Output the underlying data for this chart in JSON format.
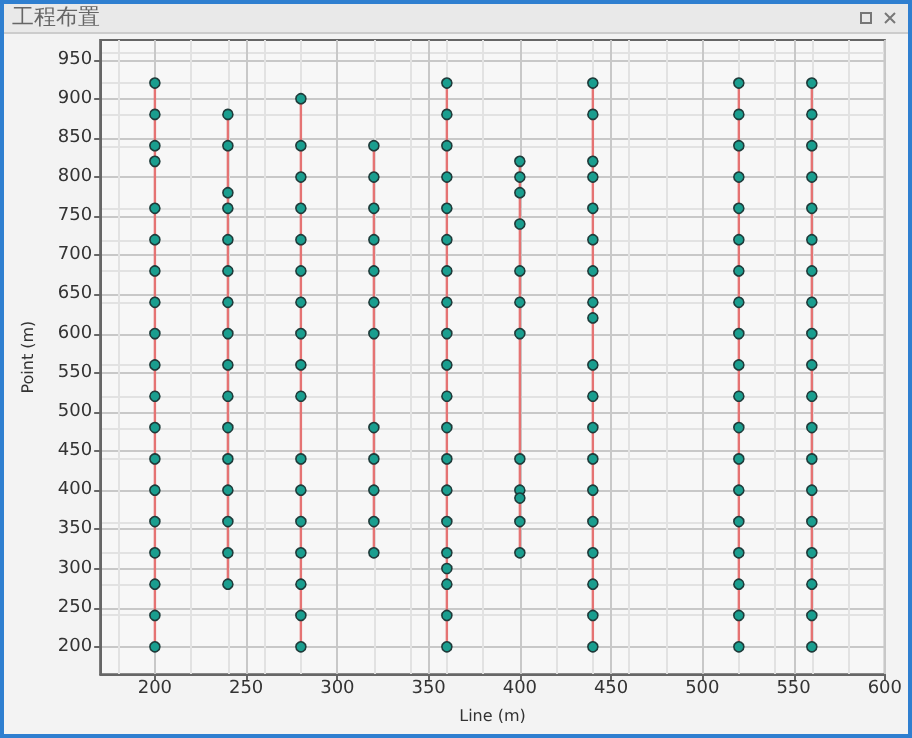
{
  "chart_data": {
    "type": "line",
    "title": "工程布置",
    "xlabel": "Line (m)",
    "ylabel": "Point (m)",
    "xlim": [
      170,
      600
    ],
    "xticks": [
      200,
      250,
      300,
      350,
      400,
      450,
      500,
      550,
      600
    ],
    "ylim": [
      165,
      975
    ],
    "yticks": [
      200,
      250,
      300,
      350,
      400,
      450,
      500,
      550,
      600,
      650,
      700,
      750,
      800,
      850,
      900,
      950
    ],
    "grid": true,
    "marker": "circle",
    "line_style": "solid",
    "series": [
      {
        "color": "#e57373",
        "x": [
          200,
          200,
          200,
          200,
          200,
          200,
          200,
          200,
          200,
          200,
          200,
          200,
          200,
          200,
          200,
          200,
          200,
          200,
          200
        ],
        "values": [
          920,
          880,
          840,
          820,
          760,
          720,
          680,
          640,
          600,
          560,
          520,
          480,
          440,
          400,
          360,
          320,
          280,
          240,
          200
        ],
        "colors": [
          "#1a9e8f",
          "#1a9e8f",
          "#1a9e8f",
          "#1a9e8f",
          "#1a9e8f",
          "#1a9e8f",
          "#1a9e8f",
          "#1a9e8f",
          "#1a9e8f",
          "#1a9e8f",
          "#1a9e8f",
          "#1a9e8f",
          "#1a9e8f",
          "#1a9e8f",
          "#1a9e8f",
          "#1a9e8f",
          "#1a9e8f",
          "#1a9e8f",
          "#1a9e8f"
        ]
      },
      {
        "color": "#e57373",
        "x": [
          240,
          240,
          240,
          240,
          240,
          240,
          240,
          240,
          240,
          240,
          240,
          240,
          240,
          240,
          240,
          240
        ],
        "values": [
          880,
          840,
          780,
          760,
          720,
          680,
          640,
          600,
          560,
          520,
          480,
          440,
          400,
          360,
          320,
          280
        ],
        "colors": [
          "#1a9e8f",
          "#1a9e8f",
          "#1a9e8f",
          "#1a9e8f",
          "#1a9e8f",
          "#1a9e8f",
          "#1a9e8f",
          "#1a9e8f",
          "#1a9e8f",
          "#1a9e8f",
          "#1a9e8f",
          "#1a9e8f",
          "#1a9e8f",
          "#1a9e8f",
          "#1a9e8f",
          "#1a9e8f"
        ]
      },
      {
        "color": "#e57373",
        "x": [
          280,
          280,
          280,
          280,
          280,
          280,
          280,
          280,
          280,
          280,
          280,
          280,
          280,
          280,
          280,
          280,
          280
        ],
        "values": [
          900,
          840,
          800,
          760,
          720,
          680,
          640,
          600,
          560,
          520,
          440,
          400,
          360,
          320,
          280,
          240,
          200
        ],
        "colors": [
          "#1a9e8f",
          "#1a9e8f",
          "#1a9e8f",
          "#1a9e8f",
          "#1a9e8f",
          "#1a9e8f",
          "#1a9e8f",
          "#1a9e8f",
          "#1a9e8f",
          "#1a9e8f",
          "#1a9e8f",
          "#1a9e8f",
          "#1a9e8f",
          "#1a9e8f",
          "#1a9e8f",
          "#1a9e8f",
          "#1a9e8f"
        ]
      },
      {
        "color": "#e57373",
        "x": [
          320,
          320,
          320,
          320,
          320,
          320,
          320,
          320,
          320,
          320,
          320,
          320
        ],
        "values": [
          840,
          800,
          760,
          720,
          680,
          640,
          600,
          480,
          440,
          400,
          360,
          320
        ],
        "colors": [
          "#1a9e8f",
          "#1a9e8f",
          "#1a9e8f",
          "#1a9e8f",
          "#1a9e8f",
          "#1a9e8f",
          "#1a9e8f",
          "#1a9e8f",
          "#1a9e8f",
          "#1a9e8f",
          "#1a9e8f",
          "#1a9e8f"
        ]
      },
      {
        "color": "#e57373",
        "x": [
          360,
          360,
          360,
          360,
          360,
          360,
          360,
          360,
          360,
          360,
          360,
          360,
          360,
          360,
          360,
          360,
          360,
          360,
          360,
          360
        ],
        "values": [
          920,
          880,
          840,
          800,
          760,
          720,
          680,
          640,
          600,
          560,
          520,
          480,
          440,
          400,
          360,
          320,
          300,
          280,
          240,
          200
        ],
        "colors": [
          "#1a9e8f",
          "#1a9e8f",
          "#1a9e8f",
          "#1a9e8f",
          "#1a9e8f",
          "#1a9e8f",
          "#1a9e8f",
          "#1a9e8f",
          "#1a9e8f",
          "#1a9e8f",
          "#1a9e8f",
          "#1a9e8f",
          "#1a9e8f",
          "#1a9e8f",
          "#1a9e8f",
          "#1a9e8f",
          "#1a9e8f",
          "#1a9e8f",
          "#1a9e8f",
          "#1a9e8f"
        ]
      },
      {
        "color": "#e57373",
        "x": [
          400,
          400,
          400,
          400,
          400,
          400,
          400,
          400,
          400,
          400,
          400,
          400
        ],
        "values": [
          820,
          800,
          780,
          740,
          680,
          640,
          600,
          440,
          400,
          390,
          360,
          320
        ],
        "colors": [
          "#1a9e8f",
          "#1a9e8f",
          "#1a9e8f",
          "#1a9e8f",
          "#1a9e8f",
          "#1a9e8f",
          "#1a9e8f",
          "#1a9e8f",
          "#1a9e8f",
          "#1a9e8f",
          "#1a9e8f",
          "#1a9e8f"
        ]
      },
      {
        "color": "#e57373",
        "x": [
          440,
          440,
          440,
          440,
          440,
          440,
          440,
          440,
          440,
          440,
          440,
          440,
          440,
          440,
          440,
          440,
          440,
          440,
          440
        ],
        "values": [
          920,
          880,
          820,
          800,
          760,
          720,
          680,
          640,
          620,
          560,
          520,
          480,
          440,
          400,
          360,
          320,
          280,
          240,
          200
        ],
        "colors": [
          "#1a9e8f",
          "#1a9e8f",
          "#1a9e8f",
          "#1a9e8f",
          "#1a9e8f",
          "#1a9e8f",
          "#1a9e8f",
          "#1a9e8f",
          "#1a9e8f",
          "#1a9e8f",
          "#1a9e8f",
          "#1a9e8f",
          "#1a9e8f",
          "#1a9e8f",
          "#1a9e8f",
          "#1a9e8f",
          "#1a9e8f",
          "#1a9e8f",
          "#1a9e8f"
        ]
      },
      {
        "color": "#e57373",
        "x": [
          520,
          520,
          520,
          520,
          520,
          520,
          520,
          520,
          520,
          520,
          520,
          520,
          520,
          520,
          520,
          520,
          520,
          520,
          520
        ],
        "values": [
          920,
          880,
          840,
          800,
          760,
          720,
          680,
          640,
          600,
          560,
          520,
          480,
          440,
          400,
          360,
          320,
          280,
          240,
          200
        ],
        "colors": [
          "#1a9e8f",
          "#1a9e8f",
          "#1a9e8f",
          "#1a9e8f",
          "#1a9e8f",
          "#1a9e8f",
          "#1a9e8f",
          "#1a9e8f",
          "#1a9e8f",
          "#1a9e8f",
          "#1a9e8f",
          "#1a9e8f",
          "#1a9e8f",
          "#1a9e8f",
          "#1a9e8f",
          "#1a9e8f",
          "#1a9e8f",
          "#1a9e8f",
          "#1a9e8f"
        ]
      },
      {
        "color": "#e57373",
        "x": [
          560,
          560,
          560,
          560,
          560,
          560,
          560,
          560,
          560,
          560,
          560,
          560,
          560,
          560,
          560,
          560,
          560,
          560,
          560
        ],
        "values": [
          920,
          880,
          840,
          800,
          760,
          720,
          680,
          640,
          600,
          560,
          520,
          480,
          440,
          400,
          360,
          320,
          280,
          240,
          200
        ],
        "colors": [
          "#1a9e8f",
          "#1a9e8f",
          "#1a9e8f",
          "#1a9e8f",
          "#1a9e8f",
          "#1a9e8f",
          "#1a9e8f",
          "#1a9e8f",
          "#1a9e8f",
          "#1a9e8f",
          "#1a9e8f",
          "#1a9e8f",
          "#1a9e8f",
          "#1a9e8f",
          "#1a9e8f",
          "#1a9e8f",
          "#1a9e8f",
          "#1a9e8f",
          "#1a9e8f"
        ]
      }
    ]
  }
}
